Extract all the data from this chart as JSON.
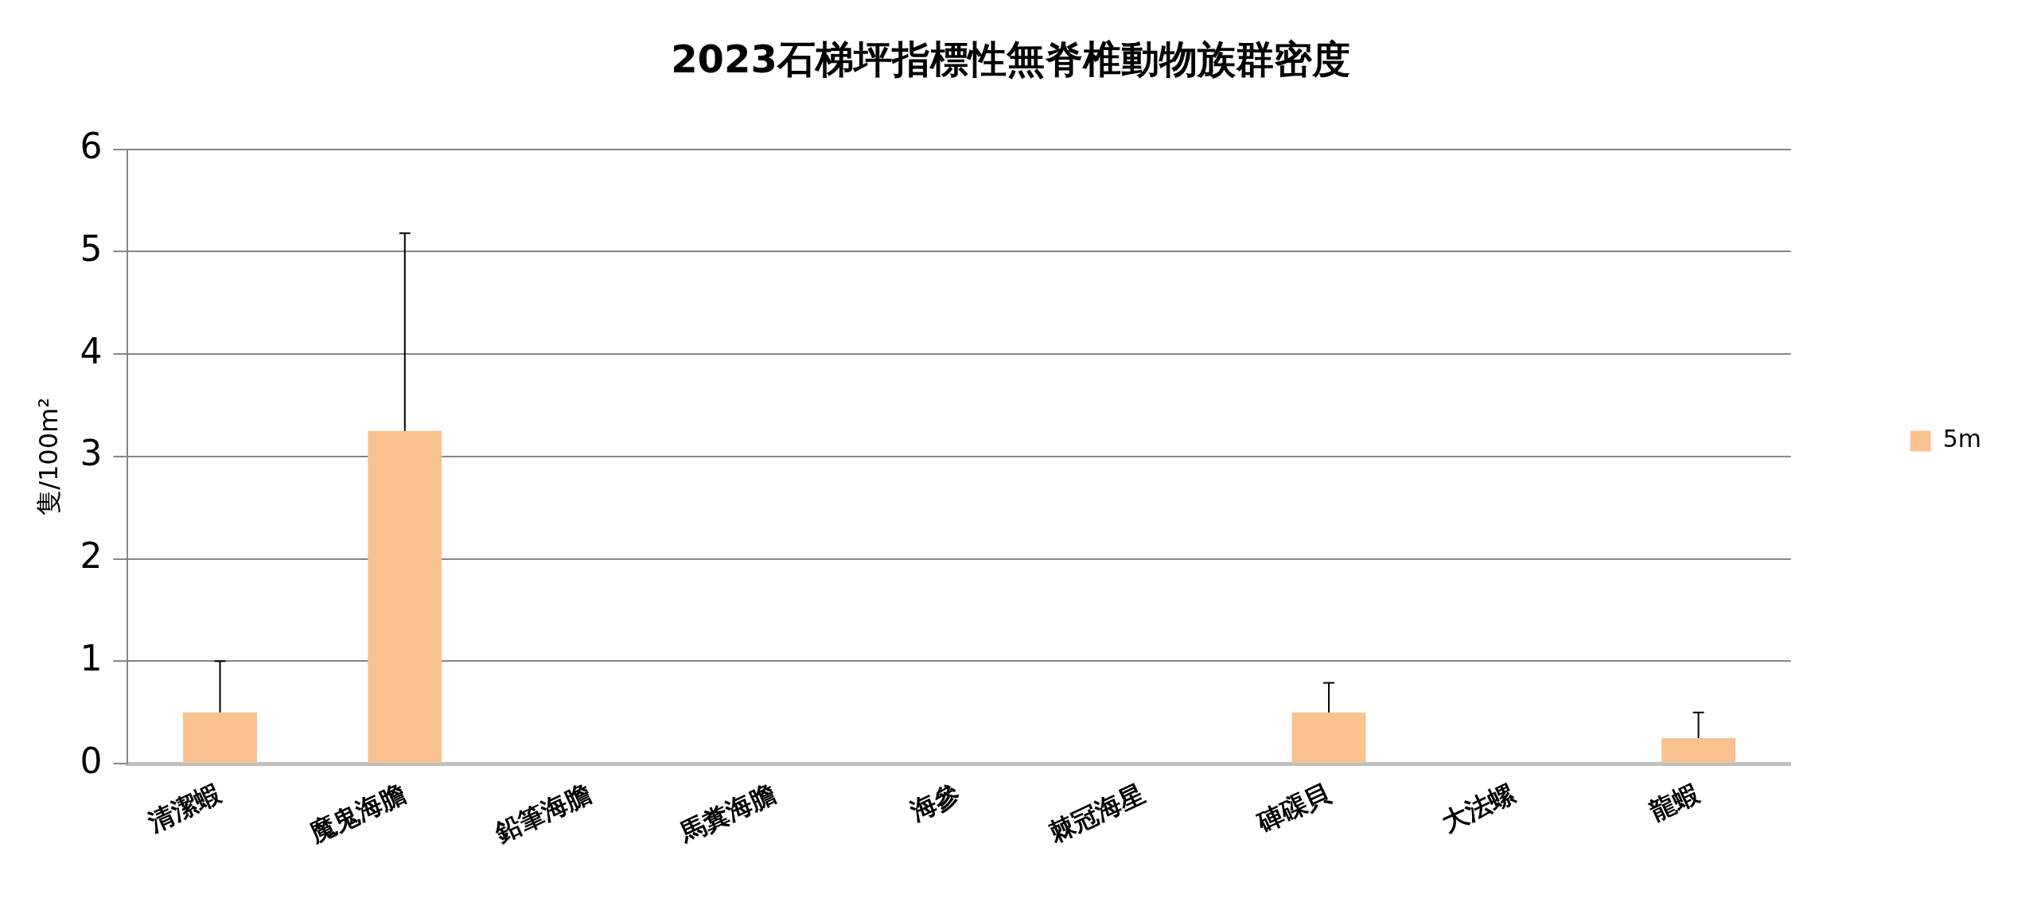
{
  "chart_data": {
    "type": "bar",
    "title": "2023石梯坪指標性無脊椎動物族群密度",
    "ylabel": "隻/100m²",
    "categories": [
      "清潔蝦",
      "魔鬼海膽",
      "鉛筆海膽",
      "馬糞海膽",
      "海參",
      "棘冠海星",
      "硨磲貝",
      "大法螺",
      "龍蝦"
    ],
    "series": [
      {
        "name": "5m",
        "color": "#f9c290",
        "values": [
          0.5,
          3.25,
          0,
          0,
          0,
          0,
          0.5,
          0,
          0.25
        ],
        "errors": [
          [
            0.5,
            1
          ],
          [
            3.25,
            5.18
          ],
          null,
          null,
          null,
          null,
          [
            0.5,
            0.79
          ],
          null,
          [
            0.25,
            0.5
          ]
        ]
      }
    ],
    "ylim": [
      0,
      6
    ],
    "yticks": [
      0,
      1,
      2,
      3,
      4,
      5,
      6
    ],
    "grid": "y",
    "legend": "right"
  }
}
